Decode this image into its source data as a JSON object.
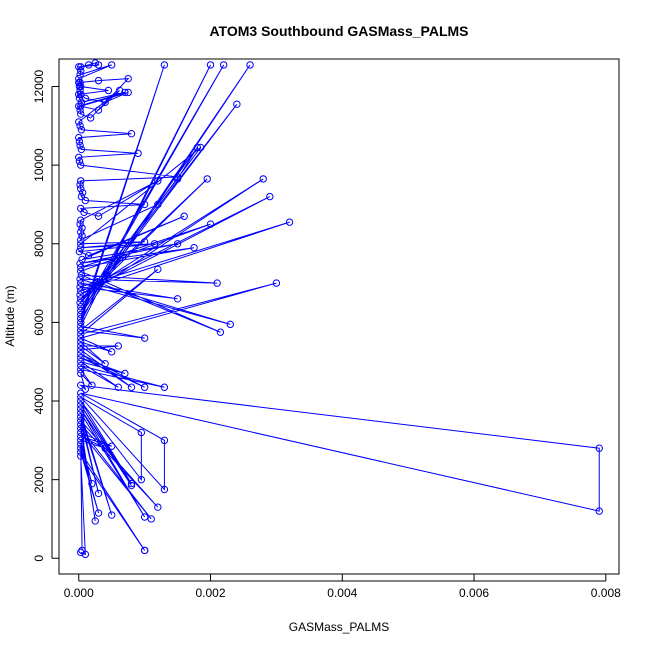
{
  "chart_data": {
    "type": "line",
    "title": "ATOM3 Southbound GASMass_PALMS",
    "xlabel": "GASMass_PALMS",
    "ylabel": "Altitude (m)",
    "xlim": [
      -0.0003,
      0.0082
    ],
    "ylim": [
      -400,
      12700
    ],
    "x_ticks": [
      0.0,
      0.002,
      0.004,
      0.006,
      0.008
    ],
    "x_tick_labels": [
      "0.000",
      "0.002",
      "0.004",
      "0.006",
      "0.008"
    ],
    "y_ticks": [
      0,
      2000,
      4000,
      6000,
      8000,
      10000,
      12000
    ],
    "y_tick_labels": [
      "0",
      "2000",
      "4000",
      "6000",
      "8000",
      "10000",
      "12000"
    ],
    "grid": false,
    "legend": "none",
    "series": [
      {
        "color": "#0000ff",
        "marker": "open-circle",
        "x": [
          3e-05,
          0.00015,
          0.00025,
          0.0003,
          0.0,
          3e-05,
          2e-05,
          0.0005,
          0.0,
          2e-05,
          3e-05,
          0.00045,
          0.0,
          1e-05,
          4e-05,
          0.0007,
          0.0,
          2e-05,
          3e-05,
          0.00018,
          0.00075,
          0.0003,
          0.0,
          1e-05,
          2e-05,
          3e-05,
          0.0001,
          0.0004,
          0.00075,
          3e-05,
          0.0003,
          0.00062,
          0.0,
          2e-05,
          4e-05,
          0.0008,
          0.0,
          1e-05,
          2e-05,
          4e-05,
          0.0009,
          0.0,
          1e-05,
          3e-05,
          0.0015,
          3e-05,
          2e-05,
          3e-05,
          6e-05,
          4e-05,
          0.0001,
          0.001,
          3e-05,
          8e-05,
          0.0003,
          0.0012,
          3e-05,
          2e-05,
          5e-05,
          3e-05,
          5e-05,
          3e-05,
          0.0012,
          0.00185,
          3e-05,
          0.001,
          3e-05,
          0.00115,
          1e-05,
          0.00015,
          0.0016,
          5e-05,
          0.0015,
          2e-05,
          0.00175,
          3e-05,
          0.002,
          3e-05,
          0.00215,
          4e-05,
          0.0021,
          2e-05,
          0.0023,
          3e-05,
          0.0015,
          2e-05,
          0.0032,
          3e-05,
          0.0029,
          2e-05,
          0.0028,
          3e-05,
          0.00195,
          2e-05,
          0.0015,
          0.0018,
          3e-05,
          0.0024,
          3e-05,
          0.0022,
          3e-05,
          0.0026,
          3e-05,
          0.0013,
          3e-05,
          0.002,
          3e-05,
          0.001,
          3e-05,
          0.0012,
          3e-05,
          0.003,
          3e-05,
          0.0005,
          3e-05,
          0.0004,
          3e-05,
          0.0006,
          3e-05,
          0.0008,
          3e-05,
          0.001,
          3e-05,
          0.0007,
          3e-05,
          0.0006,
          3e-05,
          0.0013,
          3e-05,
          0.0002,
          3e-05,
          0.0001,
          3e-05,
          0.0079,
          0.0079,
          3e-05,
          0.0013,
          0.0013,
          3e-05,
          0.00095,
          0.00095,
          3e-05,
          0.0008,
          3e-05,
          0.0008,
          3e-05,
          0.001,
          3e-05,
          0.0005,
          3e-05,
          0.0003,
          3e-05,
          0.0012,
          3e-05,
          0.00025,
          3e-05,
          0.0011,
          3e-05,
          0.0005,
          3e-05,
          0.0004,
          3e-05,
          0.0002,
          3e-05,
          5e-05,
          3e-05,
          0.0003,
          3e-05,
          0.001,
          0.001,
          3e-05,
          0.0001,
          3e-05
        ],
        "y": [
          12500,
          12550,
          12600,
          12550,
          12500,
          12400,
          12300,
          12550,
          12200,
          12100,
          12000,
          11900,
          11800,
          11700,
          11600,
          11850,
          11500,
          11400,
          11300,
          11200,
          12200,
          12150,
          12100,
          12000,
          11900,
          11800,
          11700,
          11600,
          11850,
          11500,
          11400,
          11900,
          11100,
          11000,
          10900,
          10800,
          10700,
          10600,
          10500,
          10400,
          10300,
          10200,
          10100,
          10000,
          9700,
          9600,
          9500,
          9400,
          9300,
          9200,
          9100,
          9000,
          8900,
          8800,
          8700,
          9600,
          8600,
          8500,
          8400,
          8300,
          8200,
          8100,
          9000,
          10450,
          8000,
          8050,
          7900,
          8000,
          7800,
          7700,
          8700,
          7600,
          8000,
          7500,
          7900,
          7400,
          8500,
          7300,
          5750,
          7200,
          7000,
          7100,
          5950,
          7000,
          6600,
          6900,
          8550,
          6800,
          9200,
          6700,
          9650,
          6600,
          9650,
          6500,
          9650,
          10450,
          6400,
          11550,
          6300,
          12550,
          6200,
          12550,
          6100,
          12550,
          6000,
          12550,
          5900,
          5600,
          5800,
          7350,
          5700,
          7000,
          5600,
          5250,
          5500,
          4950,
          5400,
          5400,
          5300,
          4350,
          5200,
          4350,
          5100,
          4700,
          5000,
          4350,
          4900,
          4350,
          4800,
          4400,
          4700,
          4300,
          4400,
          2800,
          1200,
          4200,
          3000,
          1750,
          4100,
          3200,
          2000,
          4000,
          1900,
          3900,
          1850,
          3800,
          1050,
          3700,
          1100,
          3600,
          1650,
          3500,
          1300,
          3400,
          950,
          3300,
          1000,
          3200,
          2850,
          3100,
          2800,
          3000,
          1900,
          2900,
          200,
          2800,
          1150,
          2700,
          200,
          200,
          2600,
          100,
          150
        ]
      }
    ]
  }
}
